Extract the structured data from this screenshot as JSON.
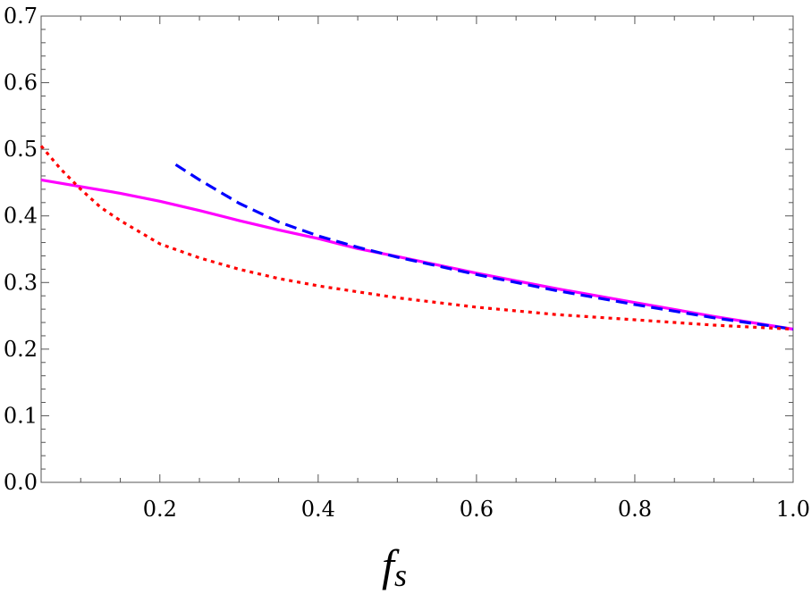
{
  "chart_data": {
    "type": "line",
    "title": "",
    "xlabel": "f",
    "xlabel_subscript": "s",
    "ylabel": "",
    "xlim": [
      0.05,
      1.0
    ],
    "ylim": [
      0.0,
      0.7
    ],
    "x_ticks": [
      "0.2",
      "0.4",
      "0.6",
      "0.8",
      "1.0"
    ],
    "y_ticks": [
      "0.0",
      "0.1",
      "0.2",
      "0.3",
      "0.4",
      "0.5",
      "0.6",
      "0.7"
    ],
    "grid": false,
    "legend": "none",
    "series": [
      {
        "style": "solid",
        "color": "#ff00ff",
        "x": [
          0.05,
          0.1,
          0.15,
          0.2,
          0.25,
          0.3,
          0.35,
          0.4,
          0.45,
          0.5,
          0.6,
          0.7,
          0.8,
          0.9,
          1.0
        ],
        "y": [
          0.454,
          0.444,
          0.434,
          0.422,
          0.408,
          0.393,
          0.379,
          0.366,
          0.351,
          0.339,
          0.314,
          0.291,
          0.27,
          0.249,
          0.23
        ]
      },
      {
        "style": "dashed",
        "color": "#0000ff",
        "x": [
          0.22,
          0.25,
          0.3,
          0.35,
          0.4,
          0.45,
          0.5,
          0.6,
          0.7,
          0.8,
          0.9,
          1.0
        ],
        "y": [
          0.477,
          0.454,
          0.419,
          0.391,
          0.37,
          0.353,
          0.338,
          0.312,
          0.288,
          0.267,
          0.247,
          0.23
        ]
      },
      {
        "style": "dotted",
        "color": "#ff0000",
        "x": [
          0.05,
          0.075,
          0.1,
          0.125,
          0.15,
          0.2,
          0.25,
          0.3,
          0.35,
          0.4,
          0.5,
          0.6,
          0.7,
          0.8,
          0.9,
          1.0
        ],
        "y": [
          0.505,
          0.47,
          0.44,
          0.413,
          0.393,
          0.358,
          0.337,
          0.32,
          0.306,
          0.295,
          0.277,
          0.263,
          0.252,
          0.244,
          0.236,
          0.23
        ]
      }
    ]
  }
}
